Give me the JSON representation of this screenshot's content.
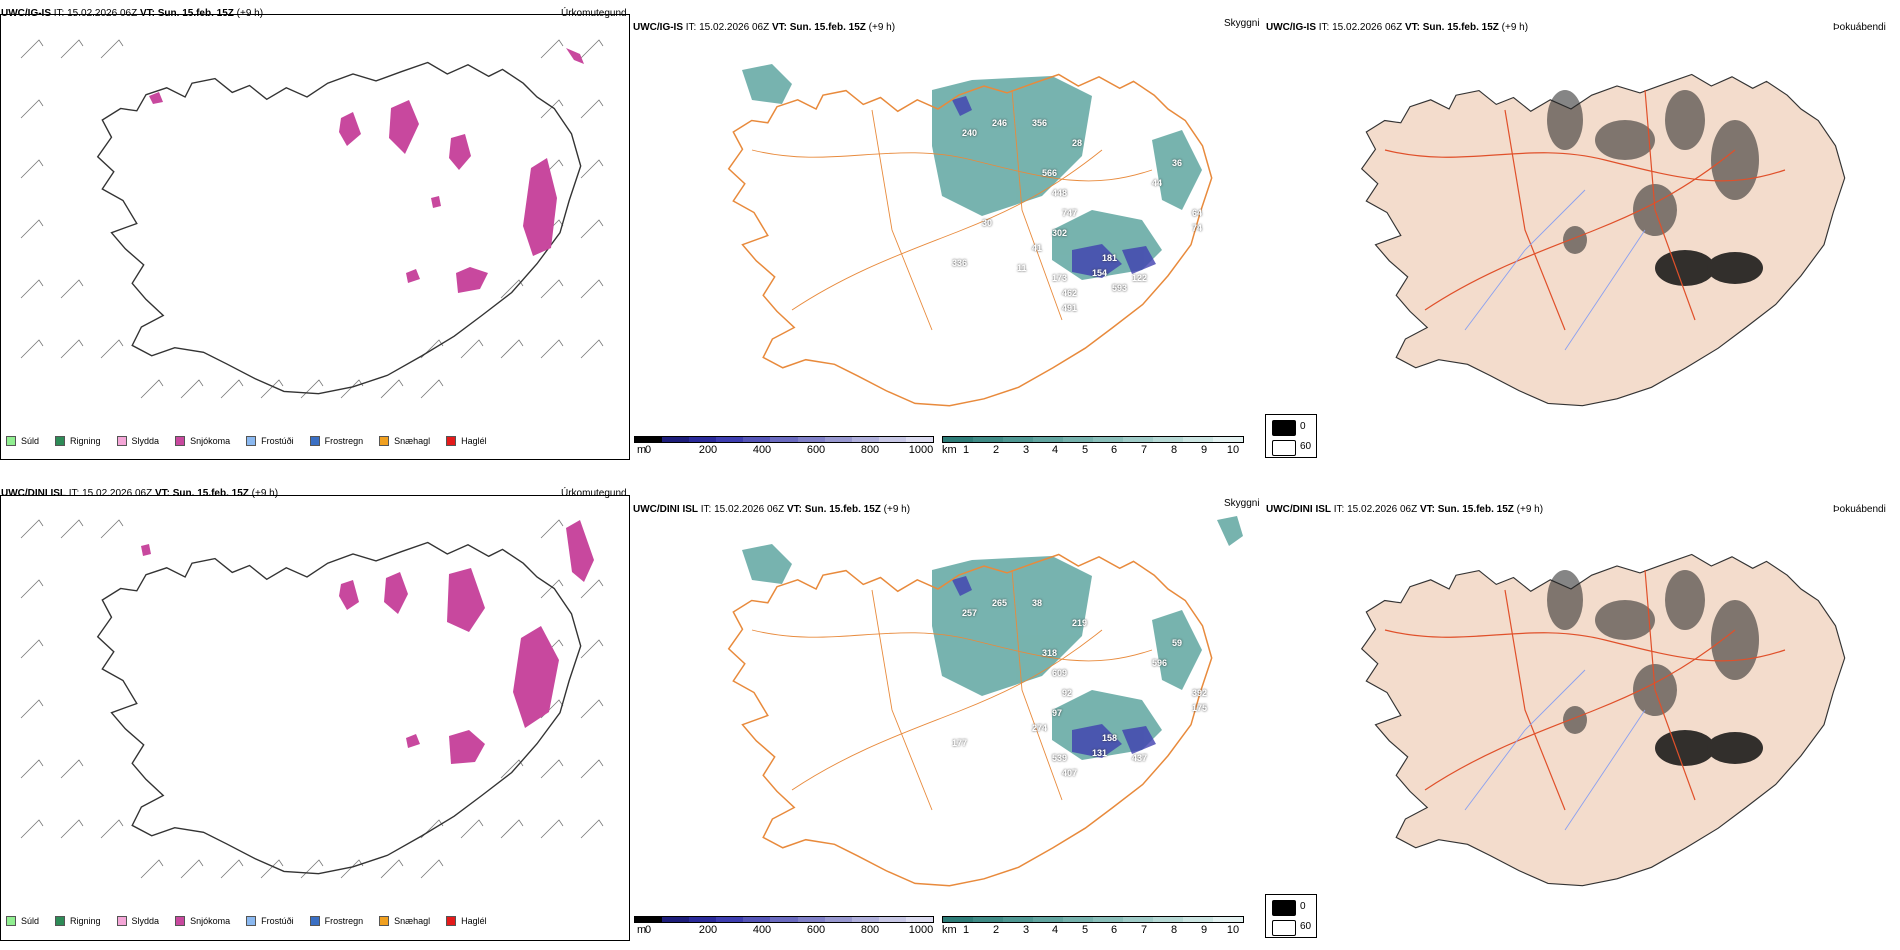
{
  "rows": [
    {
      "model": "UWC/IG-IS",
      "it_label": "IT:",
      "it_value": "15.02.2026 06Z",
      "vt_label": "VT:",
      "vt_value": "Sun. 15.feb. 15Z",
      "lead": "(+9 h)",
      "panels": {
        "precip": {
          "title": "Úrkomutegund",
          "color": "#c8489e"
        },
        "visibility": {
          "title": "Skyggni",
          "labels": [
            "240",
            "246",
            "356",
            "28",
            "36",
            "44",
            "566",
            "448",
            "747",
            "302",
            "64",
            "74",
            "41",
            "181",
            "336",
            "173",
            "154",
            "122",
            "462",
            "593",
            "11",
            "491",
            "30"
          ]
        },
        "fog": {
          "title": "Þokuábendi"
        }
      }
    },
    {
      "model": "UWC/DINI ISL",
      "it_label": "IT:",
      "it_value": "15.02.2026 06Z",
      "vt_label": "VT:",
      "vt_value": "Sun. 15.feb. 15Z",
      "lead": "(+9 h)",
      "panels": {
        "precip": {
          "title": "Úrkomutegund",
          "color": "#c8489e"
        },
        "visibility": {
          "title": "Skyggni",
          "labels": [
            "257",
            "265",
            "38",
            "219",
            "59",
            "596",
            "318",
            "609",
            "92",
            "97",
            "392",
            "175",
            "274",
            "158",
            "177",
            "539",
            "131",
            "437",
            "407"
          ]
        },
        "fog": {
          "title": "Þokuábendi"
        }
      }
    }
  ],
  "precip_legend": [
    {
      "label": "Súld",
      "color": "#90ee90"
    },
    {
      "label": "Rigning",
      "color": "#2e8b57"
    },
    {
      "label": "Slydda",
      "color": "#f4a6d7"
    },
    {
      "label": "Snjókoma",
      "color": "#c8489e"
    },
    {
      "label": "Frostúði",
      "color": "#8ab8f0"
    },
    {
      "label": "Frostregn",
      "color": "#3a6fc4"
    },
    {
      "label": "Snæhagl",
      "color": "#f0a020"
    },
    {
      "label": "Haglél",
      "color": "#e41a1a"
    }
  ],
  "cloudbase_scale": {
    "unit": "m",
    "ticks": [
      "0",
      "200",
      "400",
      "600",
      "800",
      "1000"
    ],
    "colors": [
      "#000000",
      "#1d1d7a",
      "#2a2a9a",
      "#3d3db0",
      "#5555b8",
      "#6b6bc0",
      "#8080c8",
      "#9898d0",
      "#b0b0dc",
      "#c8c8e6",
      "#dcdcf0"
    ]
  },
  "visibility_scale": {
    "unit": "km",
    "ticks": [
      "1",
      "2",
      "3",
      "4",
      "5",
      "6",
      "7",
      "8",
      "9",
      "10"
    ],
    "colors": [
      "#2e7d78",
      "#3f8b86",
      "#4f9893",
      "#62a5a0",
      "#76b2ad",
      "#8abfba",
      "#a0ccc8",
      "#b6d9d5",
      "#cde6e3",
      "#e4f2f1"
    ]
  },
  "fog_legend": [
    {
      "value": "0",
      "color": "#000000"
    },
    {
      "value": "60",
      "color": "#ffffff"
    }
  ],
  "colors": {
    "snow": "#c8489e",
    "roads": "#e88a3c",
    "fog_land": "#f3dccc",
    "fog_roads": "#e0502a",
    "fog_rivers": "#8aa0f0",
    "vis_fill": "#4a9a94"
  }
}
